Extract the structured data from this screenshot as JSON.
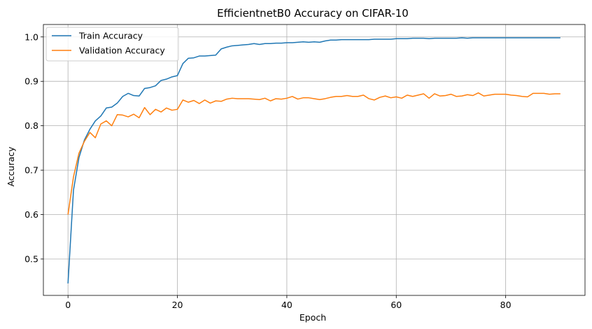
{
  "chart_data": {
    "type": "line",
    "title": "EfficientnetB0 Accuracy on CIFAR-10",
    "xlabel": "Epoch",
    "ylabel": "Accuracy",
    "xlim": [
      -4.5,
      94.5
    ],
    "ylim": [
      0.418,
      1.028
    ],
    "xticks": [
      0,
      20,
      40,
      60,
      80
    ],
    "yticks": [
      0.5,
      0.6,
      0.7,
      0.8,
      0.9,
      1.0
    ],
    "ytick_labels": [
      "0.5",
      "0.6",
      "0.7",
      "0.8",
      "0.9",
      "1.0"
    ],
    "grid": true,
    "legend_position": "top-left",
    "series": [
      {
        "name": "Train Accuracy",
        "color": "#1f77b4",
        "x": [
          0,
          1,
          2,
          3,
          4,
          5,
          6,
          7,
          8,
          9,
          10,
          11,
          12,
          13,
          14,
          15,
          16,
          17,
          18,
          19,
          20,
          21,
          22,
          23,
          24,
          25,
          26,
          27,
          28,
          29,
          30,
          31,
          32,
          33,
          34,
          35,
          36,
          37,
          38,
          39,
          40,
          41,
          42,
          43,
          44,
          45,
          46,
          47,
          48,
          49,
          50,
          51,
          52,
          53,
          54,
          55,
          56,
          57,
          58,
          59,
          60,
          61,
          62,
          63,
          64,
          65,
          66,
          67,
          68,
          69,
          70,
          71,
          72,
          73,
          74,
          75,
          76,
          77,
          78,
          79,
          80,
          81,
          82,
          83,
          84,
          85,
          86,
          87,
          88,
          89,
          90
        ],
        "values": [
          0.445,
          0.655,
          0.728,
          0.768,
          0.792,
          0.811,
          0.822,
          0.84,
          0.842,
          0.851,
          0.866,
          0.873,
          0.868,
          0.867,
          0.884,
          0.886,
          0.89,
          0.902,
          0.905,
          0.91,
          0.913,
          0.94,
          0.952,
          0.953,
          0.957,
          0.957,
          0.958,
          0.959,
          0.973,
          0.977,
          0.98,
          0.981,
          0.982,
          0.983,
          0.985,
          0.983,
          0.985,
          0.985,
          0.986,
          0.986,
          0.987,
          0.987,
          0.988,
          0.989,
          0.988,
          0.989,
          0.988,
          0.991,
          0.993,
          0.993,
          0.994,
          0.994,
          0.994,
          0.994,
          0.994,
          0.994,
          0.995,
          0.995,
          0.995,
          0.995,
          0.996,
          0.996,
          0.996,
          0.997,
          0.997,
          0.997,
          0.996,
          0.997,
          0.997,
          0.997,
          0.997,
          0.997,
          0.998,
          0.997,
          0.998,
          0.998,
          0.998,
          0.998,
          0.998,
          0.998,
          0.998,
          0.998,
          0.998,
          0.998,
          0.998,
          0.998,
          0.998,
          0.998,
          0.998,
          0.998,
          0.998
        ]
      },
      {
        "name": "Validation Accuracy",
        "color": "#ff7f0e",
        "x": [
          0,
          1,
          2,
          3,
          4,
          5,
          6,
          7,
          8,
          9,
          10,
          11,
          12,
          13,
          14,
          15,
          16,
          17,
          18,
          19,
          20,
          21,
          22,
          23,
          24,
          25,
          26,
          27,
          28,
          29,
          30,
          31,
          32,
          33,
          34,
          35,
          36,
          37,
          38,
          39,
          40,
          41,
          42,
          43,
          44,
          45,
          46,
          47,
          48,
          49,
          50,
          51,
          52,
          53,
          54,
          55,
          56,
          57,
          58,
          59,
          60,
          61,
          62,
          63,
          64,
          65,
          66,
          67,
          68,
          69,
          70,
          71,
          72,
          73,
          74,
          75,
          76,
          77,
          78,
          79,
          80,
          81,
          82,
          83,
          84,
          85,
          86,
          87,
          88,
          89,
          90
        ],
        "values": [
          0.6,
          0.685,
          0.738,
          0.765,
          0.785,
          0.773,
          0.804,
          0.811,
          0.8,
          0.825,
          0.824,
          0.82,
          0.826,
          0.818,
          0.841,
          0.825,
          0.837,
          0.831,
          0.84,
          0.835,
          0.837,
          0.858,
          0.853,
          0.857,
          0.85,
          0.858,
          0.851,
          0.856,
          0.855,
          0.86,
          0.862,
          0.861,
          0.861,
          0.861,
          0.86,
          0.859,
          0.862,
          0.856,
          0.861,
          0.86,
          0.862,
          0.866,
          0.86,
          0.863,
          0.863,
          0.861,
          0.859,
          0.861,
          0.864,
          0.866,
          0.866,
          0.868,
          0.866,
          0.866,
          0.869,
          0.861,
          0.858,
          0.864,
          0.867,
          0.863,
          0.865,
          0.862,
          0.869,
          0.866,
          0.869,
          0.872,
          0.862,
          0.872,
          0.867,
          0.868,
          0.871,
          0.866,
          0.867,
          0.87,
          0.868,
          0.874,
          0.867,
          0.869,
          0.871,
          0.871,
          0.871,
          0.869,
          0.868,
          0.866,
          0.865,
          0.873,
          0.873,
          0.873,
          0.871,
          0.872,
          0.872
        ]
      }
    ]
  }
}
